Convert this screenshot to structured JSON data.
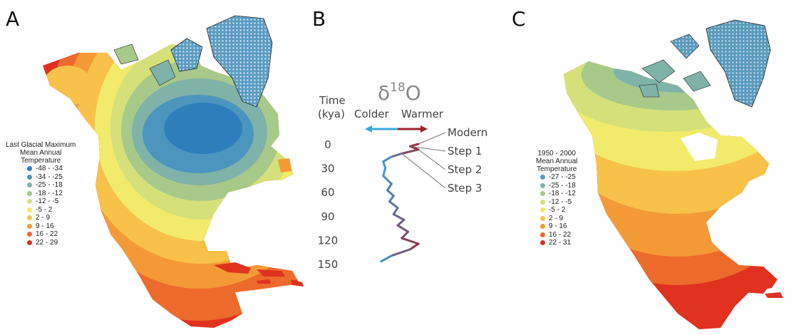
{
  "panels": {
    "a": {
      "letter": "A"
    },
    "b": {
      "letter": "B"
    },
    "c": {
      "letter": "C"
    }
  },
  "legend_lgm": {
    "title": [
      "Last Glacial Maximum",
      "Mean Annual",
      "Temperature"
    ],
    "items": [
      {
        "label": "-48 - -34",
        "color": "#2e7ebc"
      },
      {
        "label": "-34 - -25",
        "color": "#4b95bf"
      },
      {
        "label": "-25 - -18",
        "color": "#7fb2a8"
      },
      {
        "label": "-18 - -12",
        "color": "#a7c98a"
      },
      {
        "label": "-12 - -5",
        "color": "#d5e07a"
      },
      {
        "label": "-5 - 2",
        "color": "#f2ea6a"
      },
      {
        "label": "2 - 9",
        "color": "#f7c14a"
      },
      {
        "label": "9 - 16",
        "color": "#f39a37"
      },
      {
        "label": "16 - 22",
        "color": "#ec6a2b"
      },
      {
        "label": "22 - 29",
        "color": "#e0321f"
      }
    ]
  },
  "legend_modern": {
    "title": [
      "1950 - 2000",
      "Mean Annual",
      "Temperature"
    ],
    "items": [
      {
        "label": "-27 - -25",
        "color": "#5a9bbd"
      },
      {
        "label": "-25 - -18",
        "color": "#7fb2a8"
      },
      {
        "label": "-18 - -12",
        "color": "#a7c98a"
      },
      {
        "label": "-12 - -5",
        "color": "#d5e07a"
      },
      {
        "label": "-5 - 2",
        "color": "#f2ea6a"
      },
      {
        "label": "2 - 9",
        "color": "#f7c14a"
      },
      {
        "label": "9 - 16",
        "color": "#f39a37"
      },
      {
        "label": "16 - 22",
        "color": "#ec6a2b"
      },
      {
        "label": "22 - 31",
        "color": "#e0321f"
      }
    ]
  },
  "isotope_panel": {
    "title_base": "δ",
    "title_sup": "18",
    "title_tail": "O",
    "time_label": "Time",
    "time_unit": "(kya)",
    "colder": "Colder",
    "warmer": "Warmer",
    "ticks": [
      "0",
      "30",
      "60",
      "90",
      "120",
      "150"
    ],
    "steps": [
      "Modern",
      "Step 1",
      "Step 2",
      "Step 3"
    ],
    "cold_color": "#3aa7d9",
    "warm_color": "#a0202a"
  },
  "chart_data": {
    "type": "line",
    "xlabel": "",
    "ylabel": "Time (kya)",
    "ylim": [
      0,
      150
    ],
    "y": [
      0,
      3,
      7,
      12,
      16,
      22,
      30,
      40,
      50,
      58,
      65,
      72,
      80,
      88,
      95,
      102,
      110,
      118,
      125,
      132,
      140,
      147
    ],
    "x": [
      0.95,
      0.75,
      0.95,
      0.55,
      0.3,
      0.1,
      0.15,
      0.1,
      0.3,
      0.2,
      0.35,
      0.25,
      0.45,
      0.35,
      0.6,
      0.45,
      0.7,
      0.55,
      0.95,
      0.75,
      0.3,
      0.05
    ]
  }
}
